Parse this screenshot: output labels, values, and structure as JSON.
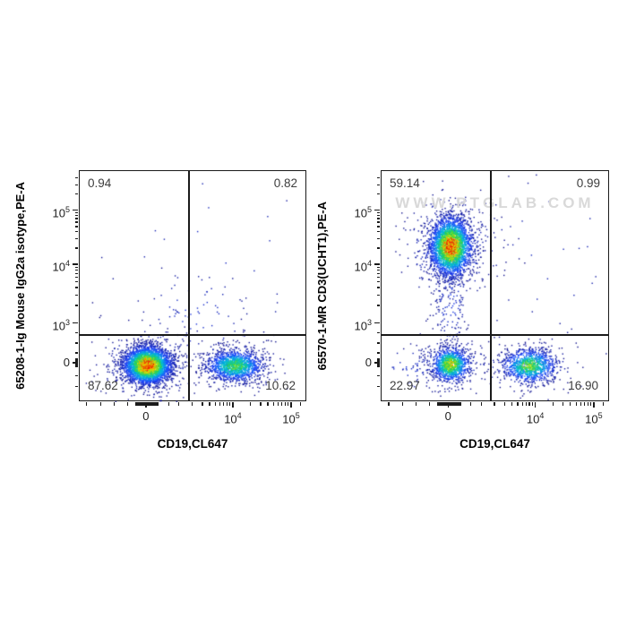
{
  "page": {
    "background": "#ffffff"
  },
  "watermark": {
    "text": "WWW.PTGLAB.COM",
    "color": "#d9d9d9"
  },
  "chart_data": [
    {
      "type": "scatter",
      "subtype": "flow_cytometry_pseudocolor_density",
      "title": "",
      "xlabel": "CD19,CL647",
      "ylabel": "65208-1-Ig Mouse IgG2a isotype,PE-A",
      "x_scale": "biexponential",
      "y_scale": "biexponential",
      "axis_color": "#1a1a1a",
      "show_watermark": false,
      "x_major_ticks": [
        {
          "base": "0",
          "exp": "",
          "frac": 0.295
        },
        {
          "base": "10",
          "exp": "4",
          "frac": 0.677
        },
        {
          "base": "10",
          "exp": "5",
          "frac": 0.933
        }
      ],
      "y_major_ticks": [
        {
          "base": "10",
          "exp": "5",
          "frac": 0.174
        },
        {
          "base": "10",
          "exp": "4",
          "frac": 0.407
        },
        {
          "base": "10",
          "exp": "3",
          "frac": 0.662
        },
        {
          "base": "0",
          "exp": "",
          "frac": 0.833
        }
      ],
      "quadrant_gate": {
        "x_frac": 0.48,
        "y_frac": 0.709
      },
      "quadrants": {
        "upper_left": "0.94",
        "upper_right": "0.82",
        "lower_left": "87.62",
        "lower_right": "10.62"
      },
      "populations": [
        {
          "id": "lower-left-cluster-fringe",
          "cx": 0.295,
          "cy": 0.838,
          "sx": 0.105,
          "sy": 0.075,
          "n": 380,
          "imax": 0.18
        },
        {
          "id": "lower-right-cluster-fringe",
          "cx": 0.68,
          "cy": 0.84,
          "sx": 0.105,
          "sy": 0.06,
          "n": 200,
          "imax": 0.15
        },
        {
          "id": "mid-sparse-scatter",
          "cx": 0.5,
          "cy": 0.62,
          "sx": 0.14,
          "sy": 0.12,
          "n": 90,
          "imax": 0.12
        },
        {
          "id": "upper-sparse-scatter",
          "cx": 0.6,
          "cy": 0.33,
          "sx": 0.28,
          "sy": 0.25,
          "n": 22,
          "imax": 0.1
        },
        {
          "id": "lower-left-cluster-core",
          "cx": 0.295,
          "cy": 0.838,
          "sx": 0.052,
          "sy": 0.04,
          "n": 3200,
          "imax": 1.0
        },
        {
          "id": "lower-right-cluster-core",
          "cx": 0.68,
          "cy": 0.84,
          "sx": 0.062,
          "sy": 0.034,
          "n": 1300,
          "imax": 0.62
        }
      ]
    },
    {
      "type": "scatter",
      "subtype": "flow_cytometry_pseudocolor_density",
      "title": "",
      "xlabel": "CD19,CL647",
      "ylabel": "65570-1-MR CD3(UCHT1),PE-A",
      "x_scale": "biexponential",
      "y_scale": "biexponential",
      "axis_color": "#1a1a1a",
      "show_watermark": true,
      "x_major_ticks": [
        {
          "base": "0",
          "exp": "",
          "frac": 0.295
        },
        {
          "base": "10",
          "exp": "4",
          "frac": 0.677
        },
        {
          "base": "10",
          "exp": "5",
          "frac": 0.933
        }
      ],
      "y_major_ticks": [
        {
          "base": "10",
          "exp": "5",
          "frac": 0.174
        },
        {
          "base": "10",
          "exp": "4",
          "frac": 0.407
        },
        {
          "base": "10",
          "exp": "3",
          "frac": 0.662
        },
        {
          "base": "0",
          "exp": "",
          "frac": 0.833
        }
      ],
      "quadrant_gate": {
        "x_frac": 0.48,
        "y_frac": 0.709
      },
      "quadrants": {
        "upper_left": "59.14",
        "upper_right": "0.99",
        "lower_left": "22.97",
        "lower_right": "16.90"
      },
      "populations": [
        {
          "id": "upper-left-cluster-fringe",
          "cx": 0.3,
          "cy": 0.325,
          "sx": 0.095,
          "sy": 0.115,
          "n": 450,
          "imax": 0.2
        },
        {
          "id": "upper-left-cluster-tail",
          "cx": 0.3,
          "cy": 0.56,
          "sx": 0.04,
          "sy": 0.11,
          "n": 150,
          "imax": 0.15
        },
        {
          "id": "lower-left-cluster-fringe",
          "cx": 0.3,
          "cy": 0.835,
          "sx": 0.085,
          "sy": 0.06,
          "n": 220,
          "imax": 0.18
        },
        {
          "id": "lower-right-cluster-fringe",
          "cx": 0.645,
          "cy": 0.84,
          "sx": 0.1,
          "sy": 0.055,
          "n": 180,
          "imax": 0.16
        },
        {
          "id": "lower-far-left-scatter",
          "cx": 0.13,
          "cy": 0.84,
          "sx": 0.1,
          "sy": 0.05,
          "n": 50,
          "imax": 0.12
        },
        {
          "id": "upper-right-sparse-scatter",
          "cx": 0.72,
          "cy": 0.35,
          "sx": 0.2,
          "sy": 0.22,
          "n": 30,
          "imax": 0.1
        },
        {
          "id": "upper-left-cluster-core",
          "cx": 0.3,
          "cy": 0.325,
          "sx": 0.045,
          "sy": 0.062,
          "n": 2800,
          "imax": 1.0
        },
        {
          "id": "lower-left-cluster-core",
          "cx": 0.3,
          "cy": 0.835,
          "sx": 0.04,
          "sy": 0.036,
          "n": 1000,
          "imax": 0.78
        },
        {
          "id": "lower-right-cluster-core",
          "cx": 0.645,
          "cy": 0.84,
          "sx": 0.058,
          "sy": 0.036,
          "n": 950,
          "imax": 0.66
        }
      ]
    }
  ]
}
